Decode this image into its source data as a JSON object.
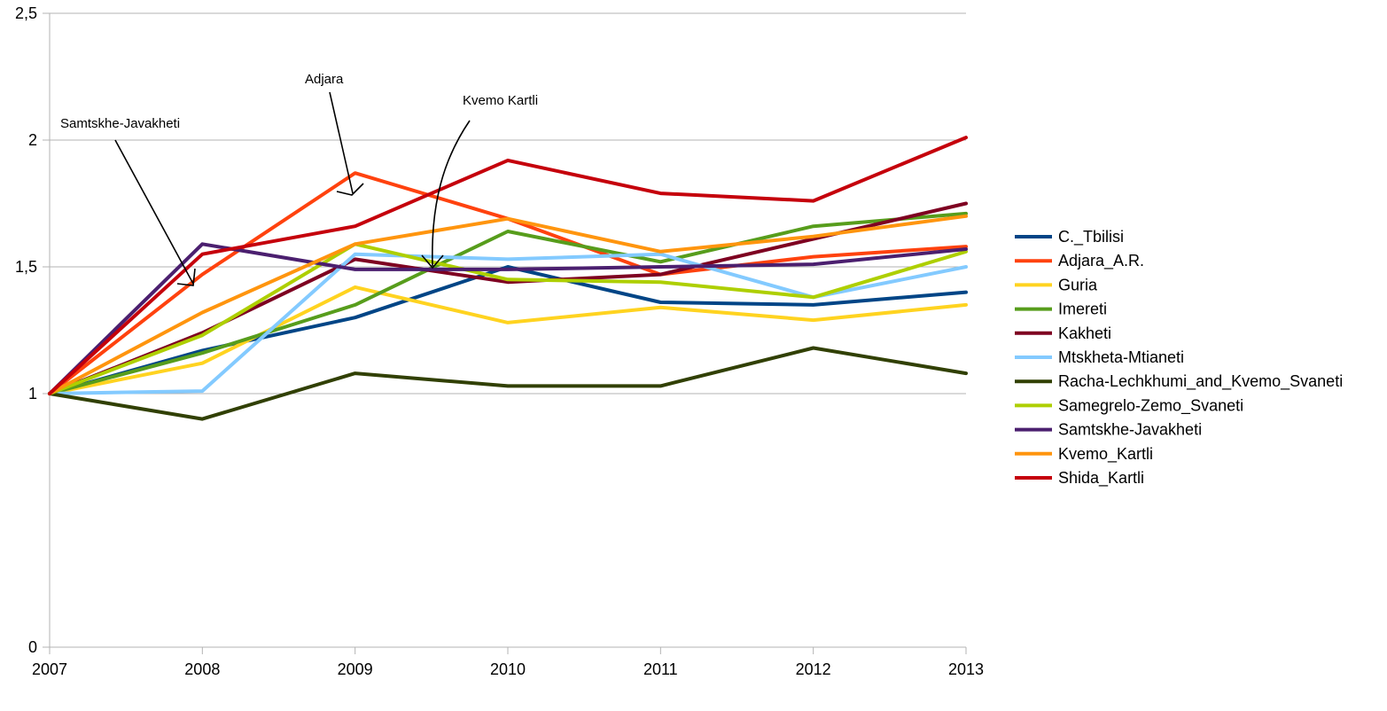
{
  "chart_data": {
    "type": "line",
    "title": "",
    "xlabel": "",
    "ylabel": "",
    "x": [
      2007,
      2008,
      2009,
      2010,
      2011,
      2012,
      2013
    ],
    "ylim": [
      0,
      2.5
    ],
    "y_ticks": [
      "0",
      "1",
      "1,5",
      "2",
      "2,5"
    ],
    "y_tick_values": [
      0,
      1,
      1.5,
      2,
      2.5
    ],
    "x_ticks": [
      "2007",
      "2008",
      "2009",
      "2010",
      "2011",
      "2012",
      "2013"
    ],
    "grid": "horizontal",
    "legend_position": "right",
    "series": [
      {
        "name": "C._Tbilisi",
        "color": "#004586",
        "values": [
          1.0,
          1.17,
          1.3,
          1.5,
          1.36,
          1.35,
          1.4
        ]
      },
      {
        "name": "Adjara_A.R.",
        "color": "#ff420e",
        "values": [
          1.0,
          1.47,
          1.87,
          1.69,
          1.47,
          1.54,
          1.58
        ]
      },
      {
        "name": "Guria",
        "color": "#ffd320",
        "values": [
          1.0,
          1.12,
          1.42,
          1.28,
          1.34,
          1.29,
          1.35
        ]
      },
      {
        "name": "Imereti",
        "color": "#579d1c",
        "values": [
          1.0,
          1.16,
          1.35,
          1.64,
          1.52,
          1.66,
          1.71
        ]
      },
      {
        "name": "Kakheti",
        "color": "#7e0021",
        "values": [
          1.0,
          1.24,
          1.53,
          1.44,
          1.47,
          1.61,
          1.75
        ]
      },
      {
        "name": "Mtskheta-Mtianeti",
        "color": "#83caff",
        "values": [
          1.0,
          1.01,
          1.55,
          1.53,
          1.55,
          1.38,
          1.5
        ]
      },
      {
        "name": "Racha-Lechkhumi_and_Kvemo_Svaneti",
        "color": "#314004",
        "values": [
          1.0,
          0.9,
          1.08,
          1.03,
          1.03,
          1.18,
          1.08
        ]
      },
      {
        "name": "Samegrelo-Zemo_Svaneti",
        "color": "#aecf00",
        "values": [
          1.0,
          1.23,
          1.59,
          1.45,
          1.44,
          1.38,
          1.56
        ]
      },
      {
        "name": "Samtskhe-Javakheti",
        "color": "#4b1f6f",
        "values": [
          1.0,
          1.59,
          1.49,
          1.49,
          1.5,
          1.51,
          1.57
        ]
      },
      {
        "name": "Kvemo_Kartli",
        "color": "#ff950e",
        "values": [
          1.0,
          1.32,
          1.59,
          1.69,
          1.56,
          1.62,
          1.7
        ]
      },
      {
        "name": "Shida_Kartli",
        "color": "#c5000b",
        "values": [
          1.0,
          1.55,
          1.66,
          1.92,
          1.79,
          1.76,
          2.01
        ]
      }
    ],
    "annotations": [
      {
        "text": "Samtskhe-Javakheti"
      },
      {
        "text": "Adjara"
      },
      {
        "text": "Kvemo Kartli"
      }
    ]
  }
}
